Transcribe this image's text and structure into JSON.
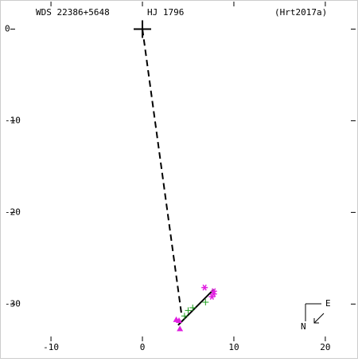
{
  "chart_data": {
    "type": "scatter",
    "title": "WDS 22386+5648",
    "subtitle": "HJ 1796",
    "reference": "(Hrt2017a)",
    "xlim": [
      -15.4,
      23.4
    ],
    "ylim": [
      -35.8,
      3
    ],
    "xticks": [
      -10,
      0,
      10,
      20
    ],
    "yticks": [
      0,
      -10,
      -20,
      -30
    ],
    "compass": {
      "east": "E",
      "north": "N"
    },
    "lines": [
      {
        "style": "dashed",
        "color": "#000000",
        "x": [
          0,
          4.3
        ],
        "y": [
          0,
          -31.3
        ]
      },
      {
        "style": "solid",
        "color": "#000000",
        "x": [
          3.9,
          7.8
        ],
        "y": [
          -32.3,
          -28.4
        ]
      }
    ],
    "series": [
      {
        "marker": "big-plus",
        "color": "#000000",
        "x": [
          0
        ],
        "values": [
          0
        ]
      },
      {
        "marker": "asterisk",
        "color": "#e020e0",
        "x": [
          6.8,
          7.8,
          7.6,
          7.8
        ],
        "values": [
          -28.2,
          -28.6,
          -29.2,
          -28.9
        ]
      },
      {
        "marker": "plus",
        "color": "#20a020",
        "x": [
          5.0,
          5.5,
          6.9,
          4.6
        ],
        "values": [
          -30.7,
          -30.4,
          -29.8,
          -31.3
        ]
      },
      {
        "marker": "triangle",
        "color": "#e020e0",
        "x": [
          3.7,
          4.0,
          4.1
        ],
        "values": [
          -31.7,
          -31.8,
          -32.7
        ]
      }
    ]
  }
}
